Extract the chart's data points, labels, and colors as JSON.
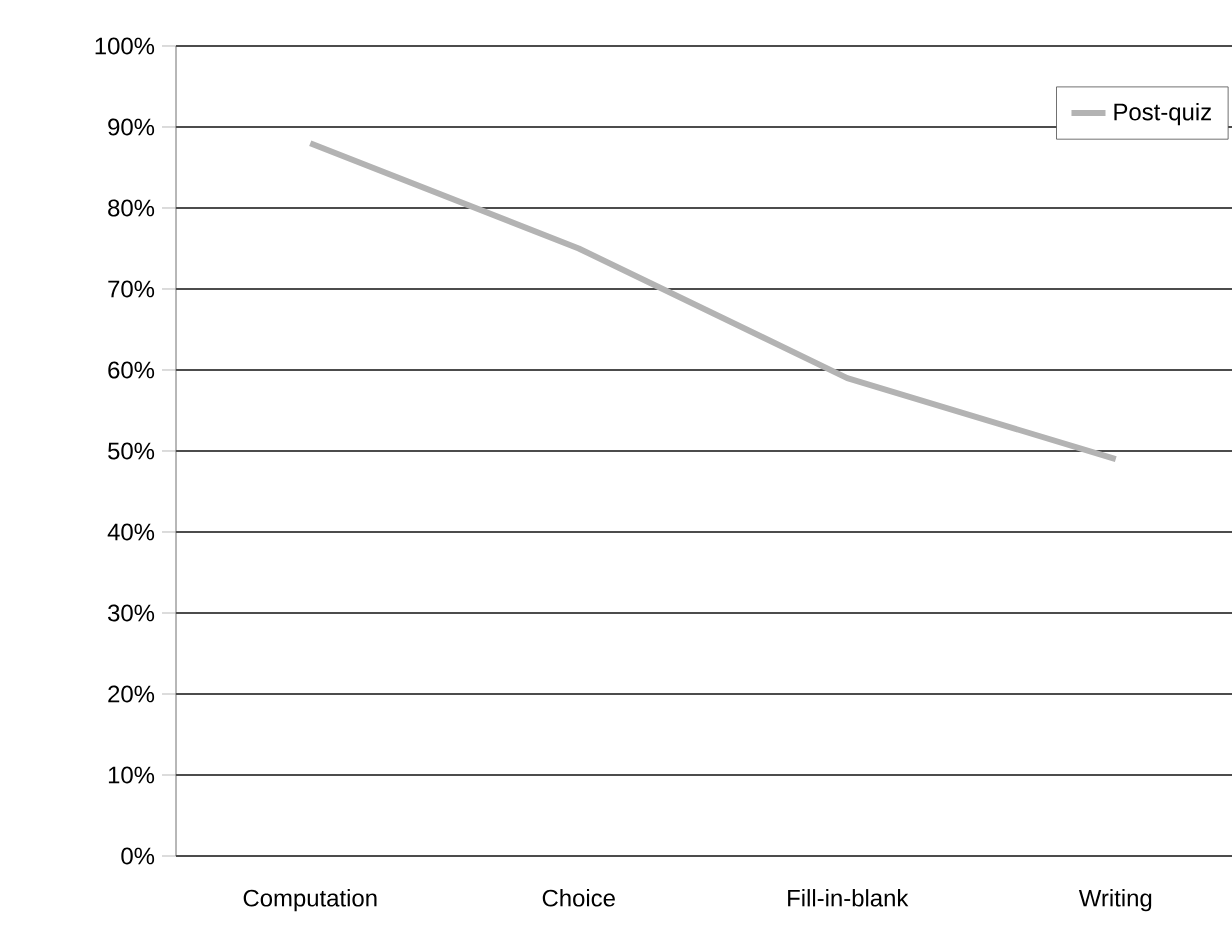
{
  "chart_data": {
    "type": "line",
    "categories": [
      "Computation",
      "Choice",
      "Fill-in-blank",
      "Writing"
    ],
    "series": [
      {
        "name": "Post-quiz",
        "color": "#b3b3b3",
        "values": [
          88,
          75,
          59,
          49
        ]
      }
    ],
    "ylim": [
      0,
      100
    ],
    "yticks": [
      {
        "value": 0,
        "label": "0%"
      },
      {
        "value": 10,
        "label": "10%"
      },
      {
        "value": 20,
        "label": "20%"
      },
      {
        "value": 30,
        "label": "30%"
      },
      {
        "value": 40,
        "label": "40%"
      },
      {
        "value": 50,
        "label": "50%"
      },
      {
        "value": 60,
        "label": "60%"
      },
      {
        "value": 70,
        "label": "70%"
      },
      {
        "value": 80,
        "label": "80%"
      },
      {
        "value": 90,
        "label": "90%"
      },
      {
        "value": 100,
        "label": "100%"
      }
    ],
    "grid": "y",
    "legend": "top right",
    "marker": "none",
    "line_style": "solid"
  }
}
